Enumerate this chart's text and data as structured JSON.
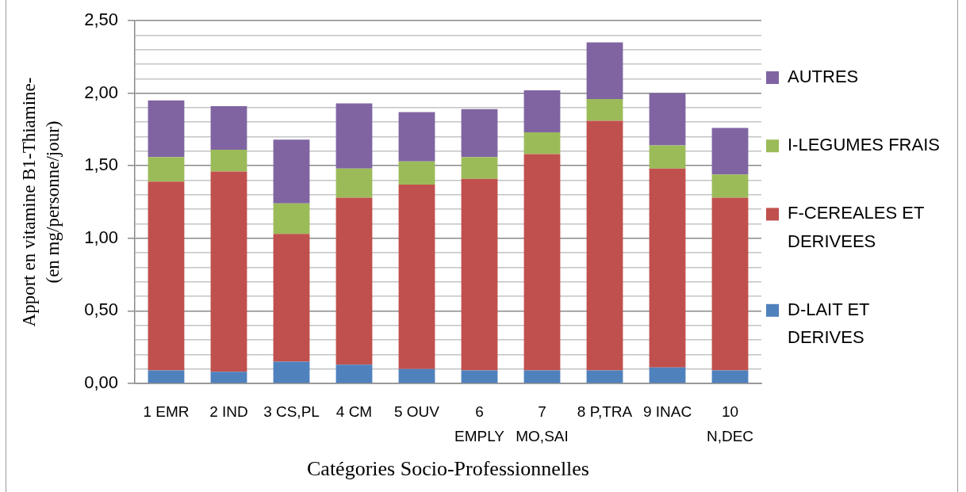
{
  "chart_data": {
    "type": "bar",
    "stacked": true,
    "xlabel": "Catégories Socio-Professionnelles",
    "ylabel": "Apport en vitamine B1-Thiamine- (en mg/personne/jour)",
    "categories": [
      "1 EMR",
      "2 IND",
      "3 CS,PL",
      "4 CM",
      "5 OUV",
      "6 EMPLY",
      "7 MO,SAI",
      "8 P,TRA",
      "9 INAC",
      "10 N,DEC"
    ],
    "series": [
      {
        "name": "D-LAIT ET DERIVES",
        "color": "#4f81bd",
        "values": [
          0.09,
          0.08,
          0.15,
          0.13,
          0.1,
          0.09,
          0.09,
          0.09,
          0.11,
          0.09
        ]
      },
      {
        "name": "F-CEREALES ET DERIVEES",
        "color": "#c0504d",
        "values": [
          1.3,
          1.38,
          0.88,
          1.15,
          1.27,
          1.32,
          1.49,
          1.72,
          1.37,
          1.19
        ]
      },
      {
        "name": "I-LEGUMES FRAIS",
        "color": "#9bbb59",
        "values": [
          0.17,
          0.15,
          0.21,
          0.2,
          0.16,
          0.15,
          0.15,
          0.15,
          0.16,
          0.16
        ]
      },
      {
        "name": "AUTRES",
        "color": "#8064a2",
        "values": [
          0.39,
          0.3,
          0.44,
          0.45,
          0.34,
          0.33,
          0.29,
          0.39,
          0.36,
          0.32
        ]
      }
    ],
    "ylim": [
      0,
      2.5
    ],
    "yticks": [
      {
        "value": 0,
        "label": "0,00"
      },
      {
        "value": 0.1,
        "label": null
      },
      {
        "value": 0.2,
        "label": null
      },
      {
        "value": 0.3,
        "label": null
      },
      {
        "value": 0.4,
        "label": null
      },
      {
        "value": 0.5,
        "label": "0,50"
      },
      {
        "value": 0.6,
        "label": null
      },
      {
        "value": 0.7,
        "label": null
      },
      {
        "value": 0.8,
        "label": null
      },
      {
        "value": 0.9,
        "label": null
      },
      {
        "value": 1,
        "label": "1,00"
      },
      {
        "value": 1.1,
        "label": null
      },
      {
        "value": 1.2,
        "label": null
      },
      {
        "value": 1.3,
        "label": null
      },
      {
        "value": 1.4,
        "label": null
      },
      {
        "value": 1.5,
        "label": "1,50"
      },
      {
        "value": 1.6,
        "label": null
      },
      {
        "value": 1.7,
        "label": null
      },
      {
        "value": 1.8,
        "label": null
      },
      {
        "value": 1.9,
        "label": null
      },
      {
        "value": 2,
        "label": "2,00"
      },
      {
        "value": 2.1,
        "label": null
      },
      {
        "value": 2.2,
        "label": null
      },
      {
        "value": 2.3,
        "label": null
      },
      {
        "value": 2.4,
        "label": null
      },
      {
        "value": 2.5,
        "label": "2,50"
      }
    ],
    "grid": "y",
    "legend": "right"
  }
}
